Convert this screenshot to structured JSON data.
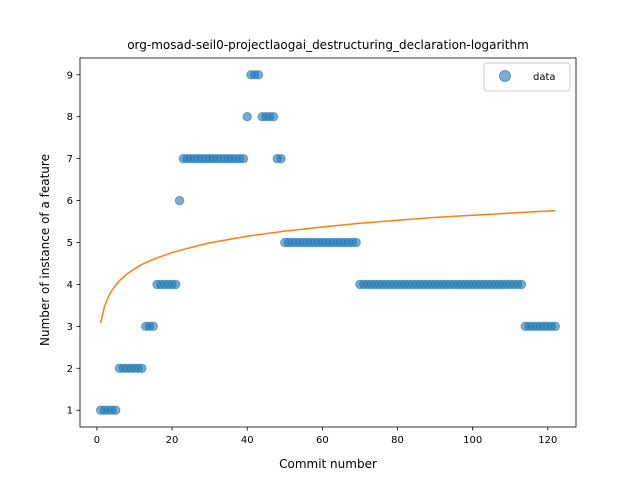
{
  "chart_data": {
    "type": "scatter",
    "title": "org-mosad-seil0-projectlaogai_destructuring_declaration-logarithm",
    "xlabel": "Commit number",
    "ylabel": "Number of instance of a feature",
    "xlim": [
      -4.5,
      127.5
    ],
    "ylim": [
      0.6,
      9.4
    ],
    "xticks": [
      0,
      20,
      40,
      60,
      80,
      100,
      120
    ],
    "yticks": [
      1,
      2,
      3,
      4,
      5,
      6,
      7,
      8,
      9
    ],
    "legend": {
      "placement": "top-right",
      "entries": [
        "data"
      ]
    },
    "grid": false,
    "colors": {
      "data": "#1f77b4",
      "fit": "#ff7f0e"
    },
    "series": [
      {
        "name": "data",
        "kind": "scatter",
        "x": [
          1,
          2,
          3,
          4,
          5,
          6,
          7,
          8,
          9,
          10,
          11,
          12,
          13,
          14,
          15,
          16,
          17,
          18,
          19,
          20,
          21,
          22,
          23,
          24,
          25,
          26,
          27,
          28,
          29,
          30,
          31,
          32,
          33,
          34,
          35,
          36,
          37,
          38,
          39,
          40,
          41,
          42,
          43,
          44,
          45,
          46,
          47,
          48,
          49,
          50,
          51,
          52,
          53,
          54,
          55,
          56,
          57,
          58,
          59,
          60,
          61,
          62,
          63,
          64,
          65,
          66,
          67,
          68,
          69,
          70,
          71,
          72,
          73,
          74,
          75,
          76,
          77,
          78,
          79,
          80,
          81,
          82,
          83,
          84,
          85,
          86,
          87,
          88,
          89,
          90,
          91,
          92,
          93,
          94,
          95,
          96,
          97,
          98,
          99,
          100,
          101,
          102,
          103,
          104,
          105,
          106,
          107,
          108,
          109,
          110,
          111,
          112,
          113,
          114,
          115,
          116,
          117,
          118,
          119,
          120,
          121,
          122
        ],
        "y": [
          1,
          1,
          1,
          1,
          1,
          2,
          2,
          2,
          2,
          2,
          2,
          2,
          3,
          3,
          3,
          4,
          4,
          4,
          4,
          4,
          4,
          6,
          7,
          7,
          7,
          7,
          7,
          7,
          7,
          7,
          7,
          7,
          7,
          7,
          7,
          7,
          7,
          7,
          7,
          8,
          9,
          9,
          9,
          8,
          8,
          8,
          8,
          7,
          7,
          5,
          5,
          5,
          5,
          5,
          5,
          5,
          5,
          5,
          5,
          5,
          5,
          5,
          5,
          5,
          5,
          5,
          5,
          5,
          5,
          4,
          4,
          4,
          4,
          4,
          4,
          4,
          4,
          4,
          4,
          4,
          4,
          4,
          4,
          4,
          4,
          4,
          4,
          4,
          4,
          4,
          4,
          4,
          4,
          4,
          4,
          4,
          4,
          4,
          4,
          4,
          4,
          4,
          4,
          4,
          4,
          4,
          4,
          4,
          4,
          4,
          4,
          4,
          4,
          3,
          3,
          3,
          3,
          3,
          3,
          3,
          3,
          3
        ]
      },
      {
        "kind": "line",
        "x": [
          1,
          2,
          3,
          4,
          5,
          6,
          8,
          10,
          12,
          15,
          20,
          25,
          30,
          40,
          50,
          60,
          70,
          80,
          90,
          100,
          110,
          122
        ],
        "y": [
          3.08,
          3.47,
          3.7,
          3.86,
          3.98,
          4.09,
          4.25,
          4.37,
          4.48,
          4.6,
          4.76,
          4.88,
          4.99,
          5.15,
          5.27,
          5.37,
          5.46,
          5.53,
          5.6,
          5.65,
          5.7,
          5.76
        ]
      }
    ]
  }
}
